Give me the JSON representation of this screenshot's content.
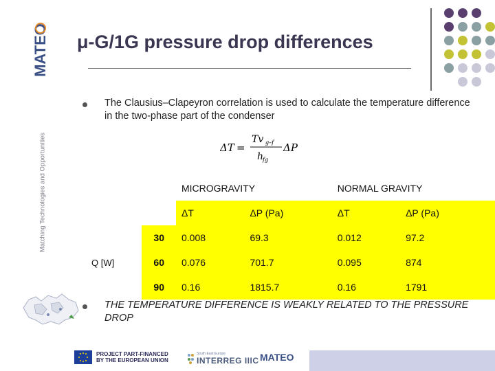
{
  "slide": {
    "title": "μ-G/1G pressure drop differences",
    "bullet1": "The Clausius–Clapeyron correlation is used to calculate the temperature difference in the two-phase part of the condenser",
    "bullet2": "THE TEMPERATURE DIFFERENCE IS WEAKLY RELATED TO THE PRESSURE DROP"
  },
  "formula": {
    "lhs": "ΔT",
    "equals": "=",
    "numerator": "Tv",
    "numerator_sub": "g–f",
    "denominator": "h",
    "denominator_sub": "fg",
    "rhs": "ΔP"
  },
  "table": {
    "group_headers": [
      "MICROGRAVITY",
      "NORMAL GRAVITY"
    ],
    "sub_headers": [
      "ΔT",
      "ΔP (Pa)",
      "ΔT",
      "ΔP (Pa)"
    ],
    "row_label": "Q [W]",
    "rows": [
      {
        "q": "30",
        "values": [
          "0.008",
          "69.3",
          "0.012",
          "97.2"
        ]
      },
      {
        "q": "60",
        "values": [
          "0.076",
          "701.7",
          "0.095",
          "874"
        ]
      },
      {
        "q": "90",
        "values": [
          "0.16",
          "1815.7",
          "0.16",
          "1791"
        ]
      }
    ]
  },
  "branding": {
    "logo_text": "MATEO",
    "tagline": "Matching Technologies and Opportunities",
    "footer_eu": [
      "PROJECT PART-FINANCED",
      "BY THE EUROPEAN UNION"
    ],
    "footer_interreg_small": "South East Europe",
    "footer_interreg": "INTERREG IIIC",
    "footer_mateo": "MATEO"
  },
  "colors": {
    "highlight": "#ffff00",
    "title": "#3a3550",
    "dot_purple": "#5a3f6e",
    "dot_teal": "#8aa0a3",
    "dot_olive": "#c2c234",
    "dot_lavender": "#c9c8d8"
  }
}
